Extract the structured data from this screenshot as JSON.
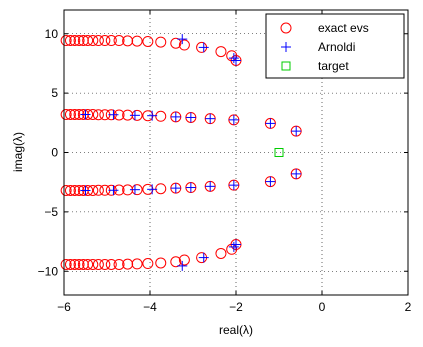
{
  "chart_data": {
    "type": "scatter",
    "xlabel": "real(λ)",
    "ylabel": "imag(λ)",
    "xlim": [
      -6,
      2
    ],
    "ylim": [
      -12,
      12
    ],
    "xticks": [
      -6,
      -4,
      -2,
      0,
      2
    ],
    "xtick_labels": [
      "−6",
      "−4",
      "−2",
      "0",
      "2"
    ],
    "yticks": [
      -10,
      -5,
      0,
      5,
      10
    ],
    "ytick_labels": [
      "−10",
      "−5",
      "0",
      "5",
      "10"
    ],
    "grid": true,
    "legend_position": "top-right",
    "series": [
      {
        "name": "exact evs",
        "marker": "circle",
        "color": "#ff0000",
        "points": [
          [
            -5.95,
            9.43
          ],
          [
            -5.85,
            9.43
          ],
          [
            -5.75,
            9.43
          ],
          [
            -5.65,
            9.43
          ],
          [
            -5.55,
            9.43
          ],
          [
            -5.45,
            9.43
          ],
          [
            -5.33,
            9.43
          ],
          [
            -5.2,
            9.43
          ],
          [
            -5.05,
            9.43
          ],
          [
            -4.9,
            9.43
          ],
          [
            -4.72,
            9.43
          ],
          [
            -4.52,
            9.4
          ],
          [
            -4.3,
            9.38
          ],
          [
            -4.05,
            9.35
          ],
          [
            -3.75,
            9.3
          ],
          [
            -3.4,
            9.2
          ],
          [
            -3.2,
            9.05
          ],
          [
            -2.8,
            8.85
          ],
          [
            -2.35,
            8.5
          ],
          [
            -2.1,
            8.15
          ],
          [
            -2.0,
            7.75
          ],
          [
            -5.95,
            3.2
          ],
          [
            -5.85,
            3.2
          ],
          [
            -5.75,
            3.2
          ],
          [
            -5.65,
            3.2
          ],
          [
            -5.55,
            3.2
          ],
          [
            -5.45,
            3.2
          ],
          [
            -5.33,
            3.2
          ],
          [
            -5.2,
            3.18
          ],
          [
            -5.05,
            3.18
          ],
          [
            -4.9,
            3.18
          ],
          [
            -4.72,
            3.16
          ],
          [
            -4.52,
            3.15
          ],
          [
            -4.3,
            3.13
          ],
          [
            -4.05,
            3.1
          ],
          [
            -3.75,
            3.05
          ],
          [
            -3.4,
            3.0
          ],
          [
            -3.05,
            2.95
          ],
          [
            -2.6,
            2.85
          ],
          [
            -2.05,
            2.75
          ],
          [
            -1.2,
            2.45
          ],
          [
            -0.6,
            1.8
          ],
          [
            -5.95,
            -3.2
          ],
          [
            -5.85,
            -3.2
          ],
          [
            -5.75,
            -3.2
          ],
          [
            -5.65,
            -3.2
          ],
          [
            -5.55,
            -3.2
          ],
          [
            -5.45,
            -3.2
          ],
          [
            -5.33,
            -3.2
          ],
          [
            -5.2,
            -3.18
          ],
          [
            -5.05,
            -3.18
          ],
          [
            -4.9,
            -3.18
          ],
          [
            -4.72,
            -3.16
          ],
          [
            -4.52,
            -3.15
          ],
          [
            -4.3,
            -3.13
          ],
          [
            -4.05,
            -3.1
          ],
          [
            -3.75,
            -3.05
          ],
          [
            -3.4,
            -3.0
          ],
          [
            -3.05,
            -2.95
          ],
          [
            -2.6,
            -2.85
          ],
          [
            -2.05,
            -2.75
          ],
          [
            -1.2,
            -2.45
          ],
          [
            -0.6,
            -1.8
          ],
          [
            -5.95,
            -9.43
          ],
          [
            -5.85,
            -9.43
          ],
          [
            -5.75,
            -9.43
          ],
          [
            -5.65,
            -9.43
          ],
          [
            -5.55,
            -9.43
          ],
          [
            -5.45,
            -9.43
          ],
          [
            -5.33,
            -9.43
          ],
          [
            -5.2,
            -9.43
          ],
          [
            -5.05,
            -9.43
          ],
          [
            -4.9,
            -9.43
          ],
          [
            -4.72,
            -9.43
          ],
          [
            -4.52,
            -9.4
          ],
          [
            -4.3,
            -9.38
          ],
          [
            -4.05,
            -9.35
          ],
          [
            -3.75,
            -9.3
          ],
          [
            -3.4,
            -9.2
          ],
          [
            -3.2,
            -9.05
          ],
          [
            -2.8,
            -8.85
          ],
          [
            -2.35,
            -8.5
          ],
          [
            -2.1,
            -8.15
          ],
          [
            -2.0,
            -7.75
          ]
        ]
      },
      {
        "name": "Arnoldi",
        "marker": "plus",
        "color": "#0000ff",
        "points": [
          [
            -3.25,
            9.55
          ],
          [
            -2.75,
            8.85
          ],
          [
            -2.05,
            7.95
          ],
          [
            -2.0,
            7.75
          ],
          [
            -5.5,
            3.2
          ],
          [
            -4.85,
            3.18
          ],
          [
            -4.35,
            3.13
          ],
          [
            -3.95,
            3.1
          ],
          [
            -3.4,
            3.0
          ],
          [
            -3.05,
            2.95
          ],
          [
            -2.6,
            2.85
          ],
          [
            -2.05,
            2.75
          ],
          [
            -1.2,
            2.45
          ],
          [
            -0.6,
            1.8
          ],
          [
            -5.5,
            -3.2
          ],
          [
            -4.85,
            -3.18
          ],
          [
            -4.35,
            -3.13
          ],
          [
            -3.95,
            -3.1
          ],
          [
            -3.4,
            -3.0
          ],
          [
            -3.05,
            -2.95
          ],
          [
            -2.6,
            -2.85
          ],
          [
            -2.05,
            -2.75
          ],
          [
            -1.2,
            -2.45
          ],
          [
            -0.6,
            -1.8
          ],
          [
            -3.25,
            -9.55
          ],
          [
            -2.75,
            -8.85
          ],
          [
            -2.05,
            -7.95
          ],
          [
            -2.0,
            -7.75
          ]
        ]
      },
      {
        "name": "target",
        "marker": "square",
        "color": "#00cc00",
        "points": [
          [
            -1.0,
            0.0
          ]
        ]
      }
    ]
  }
}
